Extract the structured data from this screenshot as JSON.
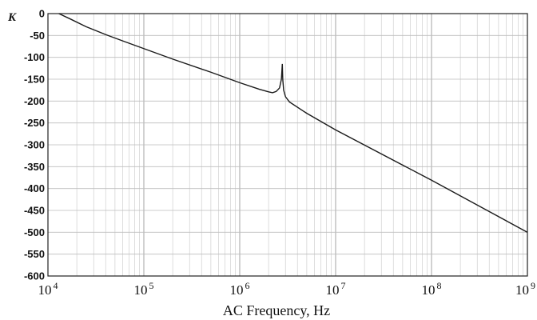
{
  "chart_data": {
    "type": "line",
    "xscale": "log",
    "xlabel": "AC Frequency,  Hz",
    "ylabel": "K",
    "xlim": [
      10000,
      1000000000
    ],
    "ylim": [
      -600,
      0
    ],
    "grid": true,
    "xticks": [
      {
        "value": 10000,
        "base": "10",
        "exp": "4"
      },
      {
        "value": 100000,
        "base": "10",
        "exp": "5"
      },
      {
        "value": 1000000,
        "base": "10",
        "exp": "6"
      },
      {
        "value": 10000000,
        "base": "10",
        "exp": "7"
      },
      {
        "value": 100000000,
        "base": "10",
        "exp": "8"
      },
      {
        "value": 1000000000,
        "base": "10",
        "exp": "9"
      }
    ],
    "yticks": [
      "0",
      "-50",
      "-100",
      "-150",
      "-200",
      "-250",
      "-300",
      "-350",
      "-400",
      "-450",
      "-500",
      "-550",
      "-600"
    ],
    "series": [
      {
        "color": "#1a1a1a",
        "points": [
          [
            13000,
            0
          ],
          [
            17000,
            -12
          ],
          [
            25000,
            -30
          ],
          [
            40000,
            -48
          ],
          [
            63000,
            -64
          ],
          [
            100000,
            -80
          ],
          [
            200000,
            -104
          ],
          [
            500000,
            -134
          ],
          [
            1000000,
            -158
          ],
          [
            1600000,
            -173
          ],
          [
            2000000,
            -179
          ],
          [
            2200000,
            -181
          ],
          [
            2400000,
            -178
          ],
          [
            2600000,
            -170
          ],
          [
            2720000,
            -150
          ],
          [
            2780000,
            -115
          ],
          [
            2810000,
            -150
          ],
          [
            2870000,
            -175
          ],
          [
            3000000,
            -190
          ],
          [
            3300000,
            -202
          ],
          [
            5000000,
            -228
          ],
          [
            10000000,
            -266
          ],
          [
            100000000,
            -381
          ],
          [
            1000000000,
            -500
          ]
        ]
      }
    ]
  }
}
